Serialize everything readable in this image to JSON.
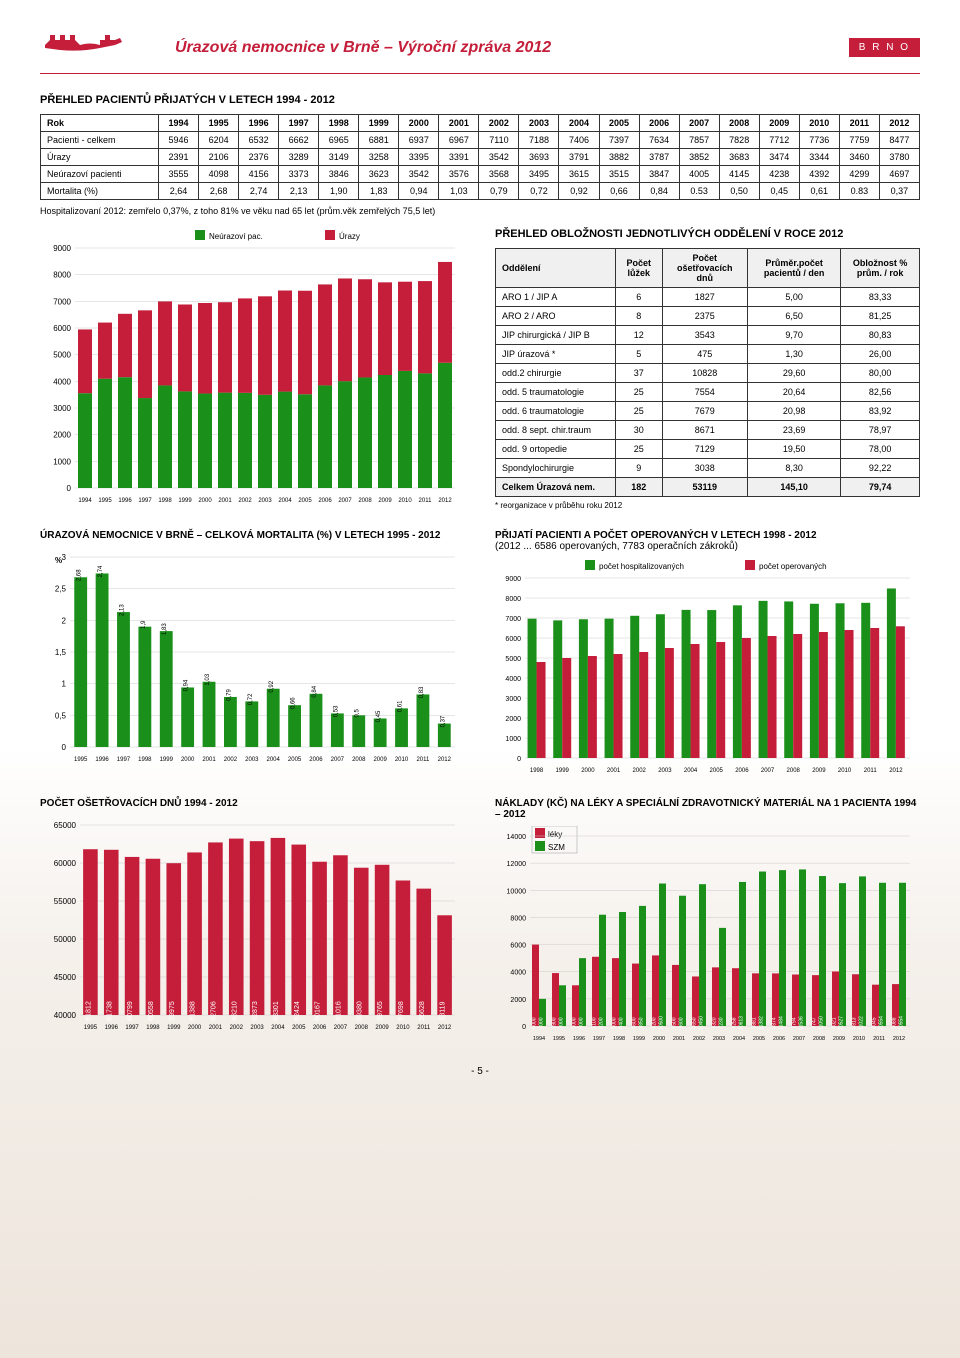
{
  "header": {
    "title": "Úrazová nemocnice v Brně – Výroční zpráva 2012",
    "badge": "B R N O"
  },
  "section1": {
    "title": "PŘEHLED PACIENTŮ PŘIJATÝCH V LETECH 1994 - 2012",
    "years": [
      1994,
      1995,
      1996,
      1997,
      1998,
      1999,
      2000,
      2001,
      2002,
      2003,
      2004,
      2005,
      2006,
      2007,
      2008,
      2009,
      2010,
      2011,
      2012
    ],
    "rows": [
      {
        "label": "Rok"
      },
      {
        "label": "Pacienti - celkem",
        "vals": [
          5946,
          6204,
          6532,
          6662,
          6965,
          6881,
          6937,
          6967,
          7110,
          7188,
          7406,
          7397,
          7634,
          7857,
          7828,
          7712,
          7736,
          7759,
          8477
        ]
      },
      {
        "label": "Úrazy",
        "vals": [
          2391,
          2106,
          2376,
          3289,
          3149,
          3258,
          3395,
          3391,
          3542,
          3693,
          3791,
          3882,
          3787,
          3852,
          3683,
          3474,
          3344,
          3460,
          3780
        ]
      },
      {
        "label": "Neúrazoví pacienti",
        "vals": [
          3555,
          4098,
          4156,
          3373,
          3846,
          3623,
          3542,
          3576,
          3568,
          3495,
          3615,
          3515,
          3847,
          4005,
          4145,
          4238,
          4392,
          4299,
          4697
        ]
      },
      {
        "label": "Mortalita (%)",
        "vals": [
          "2,64",
          "2,68",
          "2,74",
          "2,13",
          "1,90",
          "1,83",
          "0,94",
          "1,03",
          "0,79",
          "0,72",
          "0,92",
          "0,66",
          "0,84",
          "0.53",
          "0,50",
          "0,45",
          "0,61",
          "0.83",
          "0,37"
        ]
      }
    ],
    "note": "Hospitalizovaní 2012: zemřelo 0,37%, z toho 81% ve věku nad 65 let (prům.věk zemřelých 75,5 let)"
  },
  "chart1": {
    "type": "stacked-bar",
    "ymax": 9000,
    "ystep": 1000,
    "legend": [
      {
        "label": "Neúrazoví pac.",
        "color": "#1a8f1a"
      },
      {
        "label": "Úrazy",
        "color": "#c41e3a"
      }
    ],
    "years": [
      1994,
      1995,
      1996,
      1997,
      1998,
      1999,
      2000,
      2001,
      2002,
      2003,
      2004,
      2005,
      2006,
      2007,
      2008,
      2009,
      2010,
      2011,
      2012
    ],
    "series1": [
      3555,
      4098,
      4156,
      3373,
      3846,
      3623,
      3542,
      3576,
      3568,
      3495,
      3615,
      3515,
      3847,
      4005,
      4145,
      4238,
      4392,
      4299,
      4697
    ],
    "series2": [
      2391,
      2106,
      2376,
      3289,
      3149,
      3258,
      3395,
      3391,
      3542,
      3693,
      3791,
      3882,
      3787,
      3852,
      3683,
      3474,
      3344,
      3460,
      3780
    ],
    "bg": "#fff",
    "grid": "#ccc",
    "text": "#000"
  },
  "section2": {
    "title": "PŘEHLED OBLOŽNOSTI JEDNOTLIVÝCH ODDĚLENÍ V ROCE 2012",
    "headers": [
      "Oddělení",
      "Počet lůžek",
      "Počet ošetřovacích dnů",
      "Průměr.počet pacientů / den",
      "Obložnost % prům. / rok"
    ],
    "rows": [
      [
        "ARO 1 / JIP A",
        "6",
        "1827",
        "5,00",
        "83,33"
      ],
      [
        "ARO 2 / ARO",
        "8",
        "2375",
        "6,50",
        "81,25"
      ],
      [
        "JIP chirurgická / JIP B",
        "12",
        "3543",
        "9,70",
        "80,83"
      ],
      [
        "JIP úrazová *",
        "5",
        "475",
        "1,30",
        "26,00"
      ],
      [
        "odd.2 chirurgie",
        "37",
        "10828",
        "29,60",
        "80,00"
      ],
      [
        "odd. 5 traumatologie",
        "25",
        "7554",
        "20,64",
        "82,56"
      ],
      [
        "odd. 6 traumatologie",
        "25",
        "7679",
        "20,98",
        "83,92"
      ],
      [
        "odd. 8 sept. chir.traum",
        "30",
        "8671",
        "23,69",
        "78,97"
      ],
      [
        "odd. 9 ortopedie",
        "25",
        "7129",
        "19,50",
        "78,00"
      ],
      [
        "Spondylochirurgie",
        "9",
        "3038",
        "8,30",
        "92,22"
      ]
    ],
    "total": [
      "Celkem Úrazová nem.",
      "182",
      "53119",
      "145,10",
      "79,74"
    ],
    "footnote": "* reorganizace v průběhu roku 2012"
  },
  "chart2": {
    "title": "ÚRAZOVÁ NEMOCNICE V BRNĚ – CELKOVÁ MORTALITA (%) V LETECH 1995 - 2012",
    "type": "bar",
    "ymax": 3,
    "ystep": 0.5,
    "ylabel": "%",
    "years": [
      1995,
      1996,
      1997,
      1998,
      1999,
      2000,
      2001,
      2002,
      2003,
      2004,
      2005,
      2006,
      2007,
      2008,
      2009,
      2010,
      2011,
      2012
    ],
    "values": [
      2.68,
      2.74,
      2.13,
      1.9,
      1.83,
      0.94,
      1.03,
      0.79,
      0.72,
      0.92,
      0.66,
      0.84,
      0.53,
      0.5,
      0.45,
      0.61,
      0.83,
      0.37
    ],
    "labels": [
      "2,68",
      "2,74",
      "2,13",
      "1,9",
      "1,83",
      "0,94",
      "1,03",
      "0,79",
      "0,72",
      "0,92",
      "0,66",
      "0,84",
      "0,53",
      "0,5",
      "0,45",
      "0,61",
      "0,83",
      "0,37"
    ],
    "color": "#1a8f1a",
    "bg": "#fff",
    "grid": "#ccc"
  },
  "chart3": {
    "title": "PŘIJATÍ PACIENTI A POČET OPEROVANÝCH V LETECH 1998 - 2012",
    "subtitle": "(2012 ... 6586 operovaných, 7783 operačních zákroků)",
    "type": "grouped-bar",
    "ymax": 9000,
    "ystep": 1000,
    "legend": [
      {
        "label": "počet hospitalizovaných",
        "color": "#1a8f1a"
      },
      {
        "label": "počet operovaných",
        "color": "#c41e3a"
      }
    ],
    "years": [
      1998,
      1999,
      2000,
      2001,
      2002,
      2003,
      2004,
      2005,
      2006,
      2007,
      2008,
      2009,
      2010,
      2011,
      2012
    ],
    "s1": [
      6965,
      6881,
      6937,
      6967,
      7110,
      7188,
      7406,
      7397,
      7634,
      7857,
      7828,
      7712,
      7736,
      7759,
      8477
    ],
    "s2": [
      4800,
      5000,
      5100,
      5200,
      5300,
      5500,
      5700,
      5800,
      6000,
      6100,
      6200,
      6300,
      6400,
      6500,
      6586
    ],
    "bg": "#fff",
    "grid": "#ccc"
  },
  "chart4": {
    "title": "POČET OŠETŘOVACÍCH DNŮ 1994 - 2012",
    "type": "bar",
    "ymin": 40000,
    "ymax": 65000,
    "ystep": 5000,
    "years": [
      1995,
      1996,
      1997,
      1998,
      1999,
      2000,
      2001,
      2002,
      2003,
      2004,
      2005,
      2006,
      2007,
      2008,
      2009,
      2010,
      2011,
      2012
    ],
    "values": [
      61812,
      61738,
      60799,
      60558,
      59975,
      61388,
      62706,
      63210,
      62873,
      63301,
      62424,
      60167,
      61016,
      59380,
      59765,
      57698,
      56628,
      53119
    ],
    "color": "#c41e3a",
    "bg": "#fff",
    "grid": "#ccc"
  },
  "chart5": {
    "title": "NÁKLADY (KČ) NA LÉKY A SPECIÁLNÍ ZDRAVOTNICKÝ MATERIÁL NA 1 PACIENTA 1994 – 2012",
    "type": "grouped-bar",
    "ymax": 14000,
    "ystep": 2000,
    "legend": [
      {
        "label": "léky",
        "color": "#c41e3a"
      },
      {
        "label": "SZM",
        "color": "#1a8f1a"
      }
    ],
    "years": [
      1994,
      1995,
      1996,
      1997,
      1998,
      1999,
      2000,
      2001,
      2002,
      2003,
      2004,
      2005,
      2006,
      2007,
      2008,
      2009,
      2010,
      2011,
      2012
    ],
    "s1": [
      6000,
      3900,
      3000,
      5100,
      5000,
      4600,
      5200,
      4500,
      3650,
      4320,
      4258,
      3881,
      3874,
      3794,
      3747,
      4021,
      3813,
      3045,
      3088
    ],
    "s2": [
      2000,
      3000,
      5000,
      8200,
      8400,
      8850,
      10500,
      9600,
      10450,
      7230,
      10613,
      11382,
      11484,
      11536,
      11050,
      10527,
      11022,
      10554,
      10554
    ],
    "lastval": [
      3446,
      10122
    ],
    "bg": "#fff",
    "grid": "#ccc"
  },
  "pagenum": "- 5 -"
}
